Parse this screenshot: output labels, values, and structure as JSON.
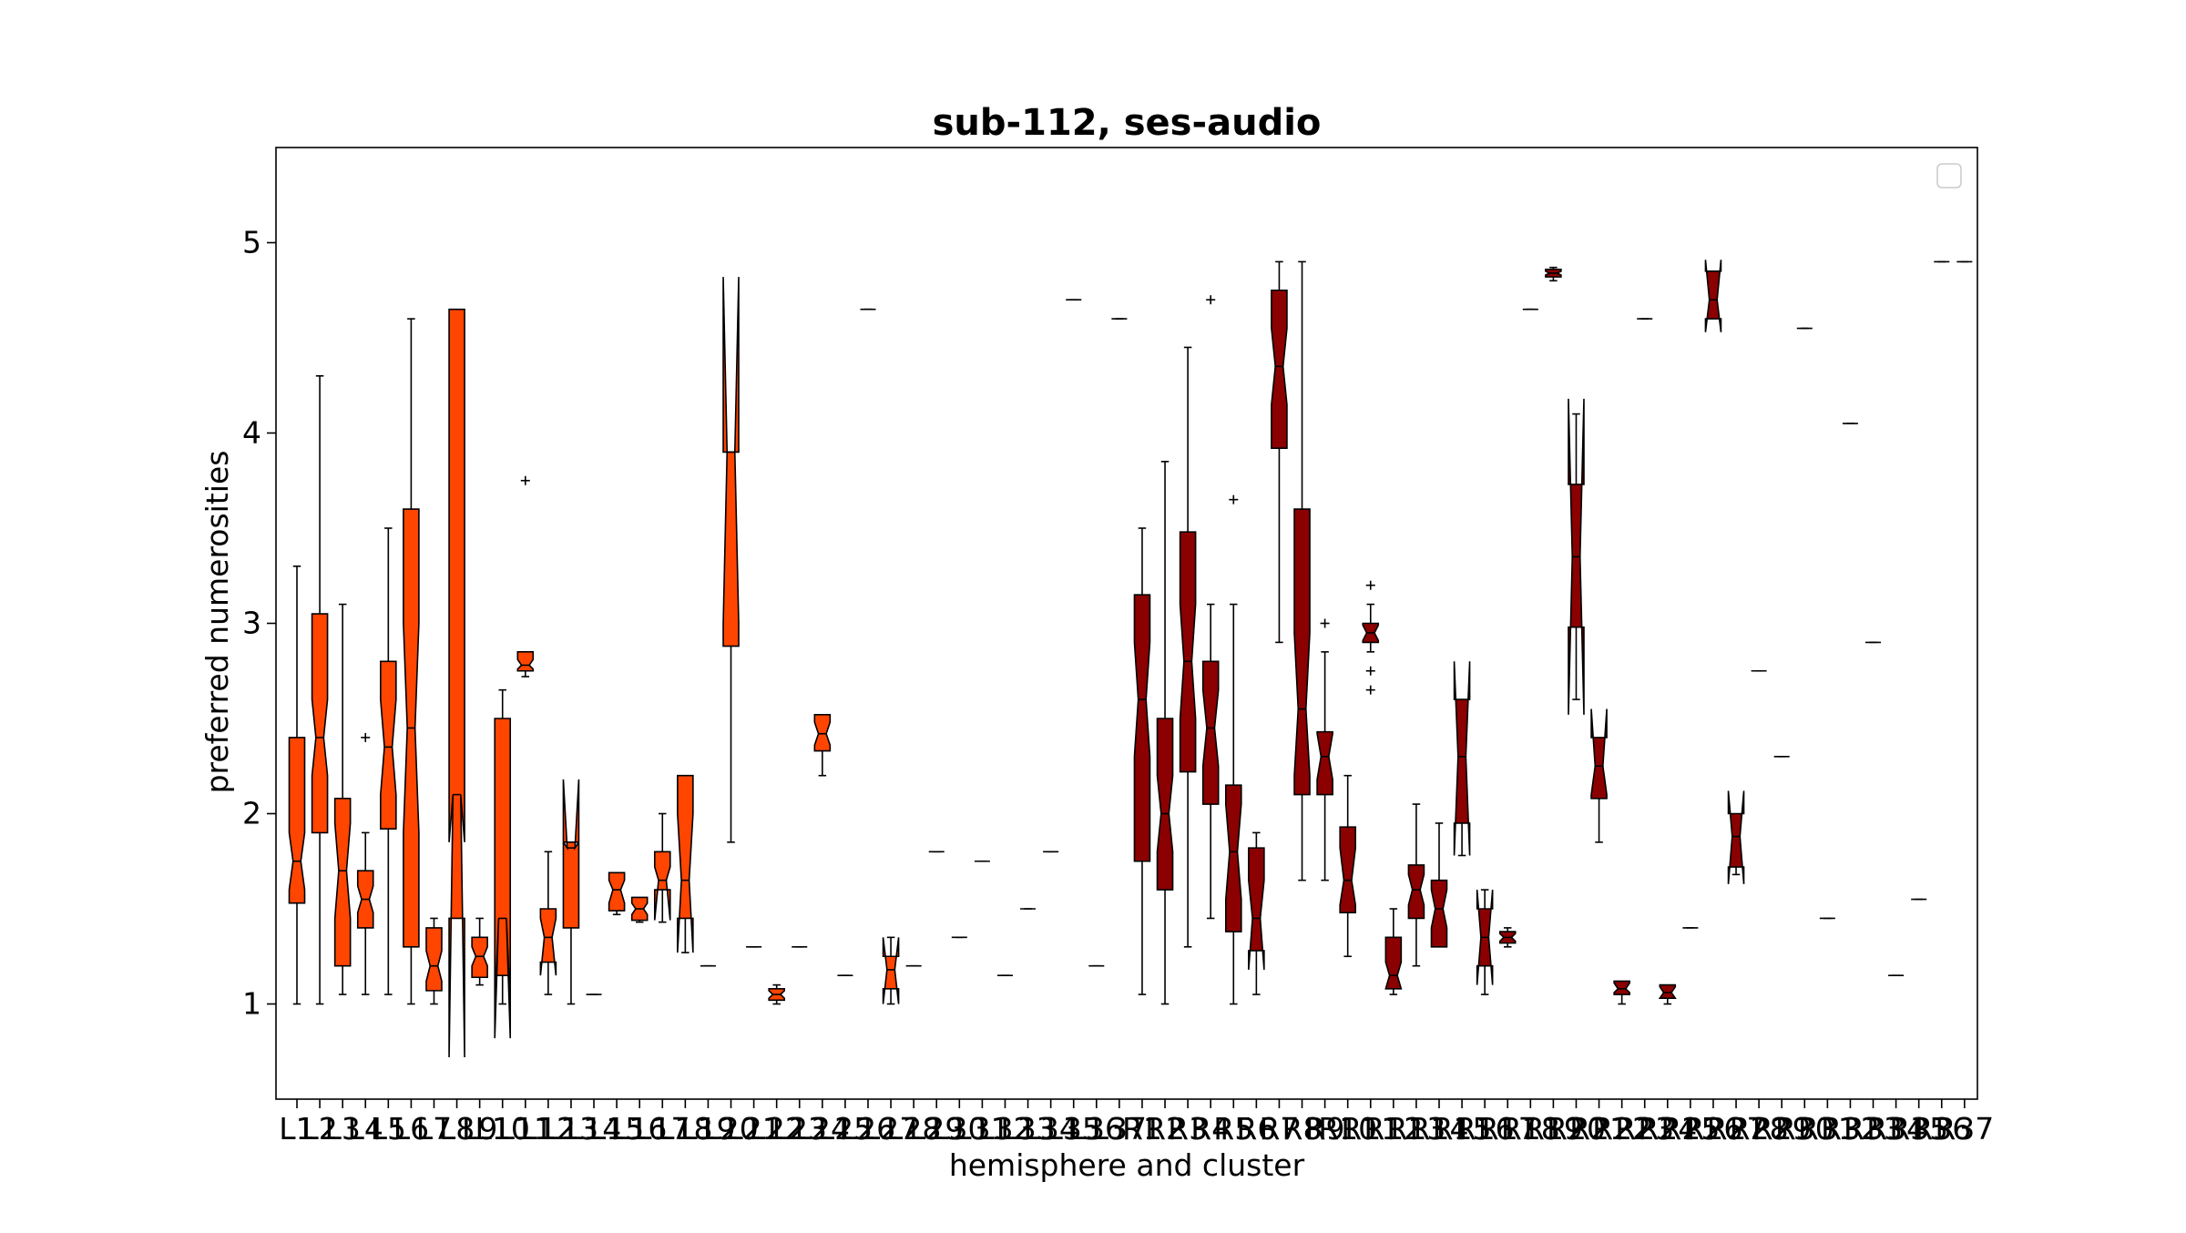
{
  "chart_data": {
    "type": "box",
    "title": "sub-112, ses-audio",
    "xlabel": "hemisphere and cluster",
    "ylabel": "preferred numerosities",
    "ylim": [
      0.5,
      5.5
    ],
    "yticks": [
      1,
      2,
      3,
      4,
      5
    ],
    "legend": "top-right (empty)",
    "grid": false,
    "colors": {
      "left": "#ff4500",
      "right": "#8b0000"
    },
    "categories": [
      "L1",
      "L2",
      "L3",
      "L4",
      "L5",
      "L6",
      "L7",
      "L8",
      "L9",
      "L10",
      "L11",
      "L12",
      "L13",
      "L14",
      "L15",
      "L16",
      "L17",
      "L18",
      "L19",
      "L20",
      "L21",
      "L22",
      "L23",
      "L24",
      "L25",
      "L26",
      "L27",
      "L28",
      "L29",
      "L30",
      "L31",
      "L32",
      "L33",
      "L34",
      "L35",
      "L36",
      "L37",
      "R1",
      "R2",
      "R3",
      "R4",
      "R5",
      "R6",
      "R7",
      "R8",
      "R9",
      "R10",
      "R11",
      "R12",
      "R13",
      "R14",
      "R15",
      "R16",
      "R17",
      "R18",
      "R19",
      "R20",
      "R21",
      "R22",
      "R23",
      "R24",
      "R25",
      "R26",
      "R27",
      "R28",
      "R29",
      "R30",
      "R31",
      "R32",
      "R33",
      "R34",
      "R35",
      "R36",
      "R37"
    ],
    "boxes": [
      {
        "label": "L1",
        "hemi": "L",
        "whislo": 1.0,
        "q1": 1.53,
        "med": 1.75,
        "q3": 2.4,
        "whishi": 3.3,
        "notchlo": 1.6,
        "notchhi": 1.9,
        "fliers": []
      },
      {
        "label": "L2",
        "hemi": "L",
        "whislo": 1.0,
        "q1": 1.9,
        "med": 2.4,
        "q3": 3.05,
        "whishi": 4.3,
        "notchlo": 2.2,
        "notchhi": 2.6,
        "fliers": []
      },
      {
        "label": "L3",
        "hemi": "L",
        "whislo": 1.05,
        "q1": 1.2,
        "med": 1.7,
        "q3": 2.08,
        "whishi": 3.1,
        "notchlo": 1.45,
        "notchhi": 1.95,
        "fliers": []
      },
      {
        "label": "L4",
        "hemi": "L",
        "whislo": 1.05,
        "q1": 1.4,
        "med": 1.55,
        "q3": 1.7,
        "whishi": 1.9,
        "notchlo": 1.48,
        "notchhi": 1.62,
        "fliers": [
          2.4
        ]
      },
      {
        "label": "L5",
        "hemi": "L",
        "whislo": 1.05,
        "q1": 1.92,
        "med": 2.35,
        "q3": 2.8,
        "whishi": 3.5,
        "notchlo": 2.1,
        "notchhi": 2.6,
        "fliers": []
      },
      {
        "label": "L6",
        "hemi": "L",
        "whislo": 1.0,
        "q1": 1.3,
        "med": 2.45,
        "q3": 3.6,
        "whishi": 4.6,
        "notchlo": 1.9,
        "notchhi": 3.0,
        "fliers": []
      },
      {
        "label": "L7",
        "hemi": "L",
        "whislo": 1.0,
        "q1": 1.07,
        "med": 1.2,
        "q3": 1.4,
        "whishi": 1.45,
        "notchlo": 1.12,
        "notchhi": 1.28,
        "fliers": []
      },
      {
        "label": "L8",
        "hemi": "L",
        "whislo": 1.45,
        "q1": 1.45,
        "med": 2.1,
        "q3": 4.65,
        "whishi": 4.65,
        "notchlo": 0.72,
        "notchhi": 1.85,
        "fliers": []
      },
      {
        "label": "L9",
        "hemi": "L",
        "whislo": 1.1,
        "q1": 1.14,
        "med": 1.25,
        "q3": 1.35,
        "whishi": 1.45,
        "notchlo": 1.2,
        "notchhi": 1.3,
        "fliers": []
      },
      {
        "label": "L10",
        "hemi": "L",
        "whislo": 1.0,
        "q1": 1.15,
        "med": 1.45,
        "q3": 2.5,
        "whishi": 2.65,
        "notchlo": 0.82,
        "notchhi": 1.0,
        "fliers": []
      },
      {
        "label": "L11",
        "hemi": "L",
        "whislo": 2.72,
        "q1": 2.75,
        "med": 2.78,
        "q3": 2.85,
        "whishi": 2.85,
        "notchlo": 2.76,
        "notchhi": 2.81,
        "fliers": [
          3.75
        ]
      },
      {
        "label": "L12",
        "hemi": "L",
        "whislo": 1.05,
        "q1": 1.22,
        "med": 1.35,
        "q3": 1.5,
        "whishi": 1.8,
        "notchlo": 1.15,
        "notchhi": 1.45,
        "fliers": []
      },
      {
        "label": "L13",
        "hemi": "L",
        "whislo": 1.0,
        "q1": 1.4,
        "med": 1.82,
        "q3": 1.85,
        "whishi": 1.85,
        "notchlo": 1.85,
        "notchhi": 2.18,
        "fliers": []
      },
      {
        "label": "L14",
        "hemi": "L",
        "whislo": 1.05,
        "q1": 1.05,
        "med": 1.05,
        "q3": 1.05,
        "whishi": 1.05,
        "notchlo": 1.05,
        "notchhi": 1.05,
        "fliers": []
      },
      {
        "label": "L15",
        "hemi": "L",
        "whislo": 1.47,
        "q1": 1.49,
        "med": 1.6,
        "q3": 1.69,
        "whishi": 1.69,
        "notchlo": 1.53,
        "notchhi": 1.65,
        "fliers": []
      },
      {
        "label": "L16",
        "hemi": "L",
        "whislo": 1.43,
        "q1": 1.44,
        "med": 1.5,
        "q3": 1.56,
        "whishi": 1.56,
        "notchlo": 1.47,
        "notchhi": 1.53,
        "fliers": []
      },
      {
        "label": "L17",
        "hemi": "L",
        "whislo": 1.43,
        "q1": 1.6,
        "med": 1.65,
        "q3": 1.8,
        "whishi": 2.0,
        "notchlo": 1.44,
        "notchhi": 1.72,
        "fliers": []
      },
      {
        "label": "L18",
        "hemi": "L",
        "whislo": 1.27,
        "q1": 1.45,
        "med": 1.65,
        "q3": 2.2,
        "whishi": 2.2,
        "notchlo": 1.27,
        "notchhi": 2.0,
        "fliers": []
      },
      {
        "label": "L19",
        "hemi": "L",
        "whislo": 1.2,
        "q1": 1.2,
        "med": 1.2,
        "q3": 1.2,
        "whishi": 1.2,
        "notchlo": 1.2,
        "notchhi": 1.2,
        "fliers": []
      },
      {
        "label": "L20",
        "hemi": "L",
        "whislo": 1.85,
        "q1": 2.88,
        "med": 3.9,
        "q3": 3.9,
        "whishi": 3.9,
        "notchlo": 3.0,
        "notchhi": 4.82,
        "fliers": []
      },
      {
        "label": "L21",
        "hemi": "L",
        "whislo": 1.3,
        "q1": 1.3,
        "med": 1.3,
        "q3": 1.3,
        "whishi": 1.3,
        "notchlo": 1.3,
        "notchhi": 1.3,
        "fliers": []
      },
      {
        "label": "L22",
        "hemi": "L",
        "whislo": 1.0,
        "q1": 1.02,
        "med": 1.05,
        "q3": 1.08,
        "whishi": 1.1,
        "notchlo": 1.03,
        "notchhi": 1.07,
        "fliers": []
      },
      {
        "label": "L23",
        "hemi": "L",
        "whislo": 1.3,
        "q1": 1.3,
        "med": 1.3,
        "q3": 1.3,
        "whishi": 1.3,
        "notchlo": 1.3,
        "notchhi": 1.3,
        "fliers": []
      },
      {
        "label": "L24",
        "hemi": "L",
        "whislo": 2.2,
        "q1": 2.33,
        "med": 2.42,
        "q3": 2.52,
        "whishi": 2.52,
        "notchlo": 2.36,
        "notchhi": 2.48,
        "fliers": []
      },
      {
        "label": "L25",
        "hemi": "L",
        "whislo": 1.15,
        "q1": 1.15,
        "med": 1.15,
        "q3": 1.15,
        "whishi": 1.15,
        "notchlo": 1.15,
        "notchhi": 1.15,
        "fliers": []
      },
      {
        "label": "L26",
        "hemi": "L",
        "whislo": 4.65,
        "q1": 4.65,
        "med": 4.65,
        "q3": 4.65,
        "whishi": 4.65,
        "notchlo": 4.65,
        "notchhi": 4.65,
        "fliers": []
      },
      {
        "label": "L27",
        "hemi": "L",
        "whislo": 1.0,
        "q1": 1.08,
        "med": 1.18,
        "q3": 1.25,
        "whishi": 1.35,
        "notchlo": 1.0,
        "notchhi": 1.35,
        "fliers": []
      },
      {
        "label": "L28",
        "hemi": "L",
        "whislo": 1.2,
        "q1": 1.2,
        "med": 1.2,
        "q3": 1.2,
        "whishi": 1.2,
        "notchlo": 1.2,
        "notchhi": 1.2,
        "fliers": []
      },
      {
        "label": "L29",
        "hemi": "L",
        "whislo": 1.8,
        "q1": 1.8,
        "med": 1.8,
        "q3": 1.8,
        "whishi": 1.8,
        "notchlo": 1.8,
        "notchhi": 1.8,
        "fliers": []
      },
      {
        "label": "L30",
        "hemi": "L",
        "whislo": 1.35,
        "q1": 1.35,
        "med": 1.35,
        "q3": 1.35,
        "whishi": 1.35,
        "notchlo": 1.35,
        "notchhi": 1.35,
        "fliers": []
      },
      {
        "label": "L31",
        "hemi": "L",
        "whislo": 1.75,
        "q1": 1.75,
        "med": 1.75,
        "q3": 1.75,
        "whishi": 1.75,
        "notchlo": 1.75,
        "notchhi": 1.75,
        "fliers": []
      },
      {
        "label": "L32",
        "hemi": "L",
        "whislo": 1.15,
        "q1": 1.15,
        "med": 1.15,
        "q3": 1.15,
        "whishi": 1.15,
        "notchlo": 1.15,
        "notchhi": 1.15,
        "fliers": []
      },
      {
        "label": "L33",
        "hemi": "L",
        "whislo": 1.5,
        "q1": 1.5,
        "med": 1.5,
        "q3": 1.5,
        "whishi": 1.5,
        "notchlo": 1.5,
        "notchhi": 1.5,
        "fliers": []
      },
      {
        "label": "L34",
        "hemi": "L",
        "whislo": 1.8,
        "q1": 1.8,
        "med": 1.8,
        "q3": 1.8,
        "whishi": 1.8,
        "notchlo": 1.8,
        "notchhi": 1.8,
        "fliers": []
      },
      {
        "label": "L35",
        "hemi": "L",
        "whislo": 4.7,
        "q1": 4.7,
        "med": 4.7,
        "q3": 4.7,
        "whishi": 4.7,
        "notchlo": 4.7,
        "notchhi": 4.7,
        "fliers": []
      },
      {
        "label": "L36",
        "hemi": "L",
        "whislo": 1.2,
        "q1": 1.2,
        "med": 1.2,
        "q3": 1.2,
        "whishi": 1.2,
        "notchlo": 1.2,
        "notchhi": 1.2,
        "fliers": []
      },
      {
        "label": "L37",
        "hemi": "L",
        "whislo": 4.6,
        "q1": 4.6,
        "med": 4.6,
        "q3": 4.6,
        "whishi": 4.6,
        "notchlo": 4.6,
        "notchhi": 4.6,
        "fliers": []
      },
      {
        "label": "R1",
        "hemi": "R",
        "whislo": 1.05,
        "q1": 1.75,
        "med": 2.6,
        "q3": 3.15,
        "whishi": 3.5,
        "notchlo": 2.3,
        "notchhi": 2.9,
        "fliers": []
      },
      {
        "label": "R2",
        "hemi": "R",
        "whislo": 1.0,
        "q1": 1.6,
        "med": 2.0,
        "q3": 2.5,
        "whishi": 3.85,
        "notchlo": 1.8,
        "notchhi": 2.2,
        "fliers": []
      },
      {
        "label": "R3",
        "hemi": "R",
        "whislo": 1.3,
        "q1": 2.22,
        "med": 2.8,
        "q3": 3.48,
        "whishi": 4.45,
        "notchlo": 2.5,
        "notchhi": 3.1,
        "fliers": []
      },
      {
        "label": "R4",
        "hemi": "R",
        "whislo": 1.45,
        "q1": 2.05,
        "med": 2.45,
        "q3": 2.8,
        "whishi": 3.1,
        "notchlo": 2.25,
        "notchhi": 2.65,
        "fliers": [
          4.7
        ]
      },
      {
        "label": "R5",
        "hemi": "R",
        "whislo": 1.0,
        "q1": 1.38,
        "med": 1.8,
        "q3": 2.15,
        "whishi": 3.1,
        "notchlo": 1.55,
        "notchhi": 2.05,
        "fliers": [
          3.65
        ]
      },
      {
        "label": "R6",
        "hemi": "R",
        "whislo": 1.05,
        "q1": 1.28,
        "med": 1.45,
        "q3": 1.82,
        "whishi": 1.9,
        "notchlo": 1.18,
        "notchhi": 1.65,
        "fliers": []
      },
      {
        "label": "R7",
        "hemi": "R",
        "whislo": 2.9,
        "q1": 3.92,
        "med": 4.35,
        "q3": 4.75,
        "whishi": 4.9,
        "notchlo": 4.15,
        "notchhi": 4.55,
        "fliers": []
      },
      {
        "label": "R8",
        "hemi": "R",
        "whislo": 1.65,
        "q1": 2.1,
        "med": 2.55,
        "q3": 3.6,
        "whishi": 4.9,
        "notchlo": 2.2,
        "notchhi": 2.95,
        "fliers": []
      },
      {
        "label": "R9",
        "hemi": "R",
        "whislo": 1.65,
        "q1": 2.1,
        "med": 2.3,
        "q3": 2.43,
        "whishi": 2.85,
        "notchlo": 2.18,
        "notchhi": 2.42,
        "fliers": [
          3.0
        ]
      },
      {
        "label": "R10",
        "hemi": "R",
        "whislo": 1.25,
        "q1": 1.48,
        "med": 1.65,
        "q3": 1.93,
        "whishi": 2.2,
        "notchlo": 1.52,
        "notchhi": 1.82,
        "fliers": []
      },
      {
        "label": "R11",
        "hemi": "R",
        "whislo": 2.85,
        "q1": 2.9,
        "med": 2.95,
        "q3": 3.0,
        "whishi": 3.1,
        "notchlo": 2.91,
        "notchhi": 2.99,
        "fliers": [
          2.75,
          2.65,
          3.2
        ]
      },
      {
        "label": "R12",
        "hemi": "R",
        "whislo": 1.05,
        "q1": 1.08,
        "med": 1.15,
        "q3": 1.35,
        "whishi": 1.5,
        "notchlo": 1.08,
        "notchhi": 1.22,
        "fliers": []
      },
      {
        "label": "R13",
        "hemi": "R",
        "whislo": 1.2,
        "q1": 1.45,
        "med": 1.6,
        "q3": 1.73,
        "whishi": 2.05,
        "notchlo": 1.52,
        "notchhi": 1.68,
        "fliers": []
      },
      {
        "label": "R14",
        "hemi": "R",
        "whislo": 1.3,
        "q1": 1.3,
        "med": 1.5,
        "q3": 1.65,
        "whishi": 1.95,
        "notchlo": 1.4,
        "notchhi": 1.6,
        "fliers": []
      },
      {
        "label": "R15",
        "hemi": "R",
        "whislo": 1.78,
        "q1": 1.95,
        "med": 2.3,
        "q3": 2.6,
        "whishi": 2.6,
        "notchlo": 1.78,
        "notchhi": 2.8,
        "fliers": []
      },
      {
        "label": "R16",
        "hemi": "R",
        "whislo": 1.05,
        "q1": 1.2,
        "med": 1.35,
        "q3": 1.5,
        "whishi": 1.6,
        "notchlo": 1.1,
        "notchhi": 1.6,
        "fliers": []
      },
      {
        "label": "R17",
        "hemi": "R",
        "whislo": 1.3,
        "q1": 1.32,
        "med": 1.35,
        "q3": 1.38,
        "whishi": 1.4,
        "notchlo": 1.33,
        "notchhi": 1.37,
        "fliers": []
      },
      {
        "label": "R18",
        "hemi": "R",
        "whislo": 4.65,
        "q1": 4.65,
        "med": 4.65,
        "q3": 4.65,
        "whishi": 4.65,
        "notchlo": 4.65,
        "notchhi": 4.65,
        "fliers": []
      },
      {
        "label": "R19",
        "hemi": "R",
        "whislo": 4.8,
        "q1": 4.82,
        "med": 4.84,
        "q3": 4.86,
        "whishi": 4.87,
        "notchlo": 4.83,
        "notchhi": 4.85,
        "fliers": []
      },
      {
        "label": "R20",
        "hemi": "R",
        "whislo": 2.6,
        "q1": 2.98,
        "med": 3.35,
        "q3": 3.73,
        "whishi": 4.1,
        "notchlo": 2.52,
        "notchhi": 4.18,
        "fliers": []
      },
      {
        "label": "R21",
        "hemi": "R",
        "whislo": 1.85,
        "q1": 2.08,
        "med": 2.25,
        "q3": 2.4,
        "whishi": 2.4,
        "notchlo": 2.1,
        "notchhi": 2.55,
        "fliers": []
      },
      {
        "label": "R22",
        "hemi": "R",
        "whislo": 1.0,
        "q1": 1.05,
        "med": 1.08,
        "q3": 1.12,
        "whishi": 1.12,
        "notchlo": 1.06,
        "notchhi": 1.11,
        "fliers": []
      },
      {
        "label": "R23",
        "hemi": "R",
        "whislo": 4.6,
        "q1": 4.6,
        "med": 4.6,
        "q3": 4.6,
        "whishi": 4.6,
        "notchlo": 4.6,
        "notchhi": 4.6,
        "fliers": []
      },
      {
        "label": "R24",
        "hemi": "R",
        "whislo": 1.0,
        "q1": 1.03,
        "med": 1.06,
        "q3": 1.1,
        "whishi": 1.1,
        "notchlo": 1.03,
        "notchhi": 1.09,
        "fliers": []
      },
      {
        "label": "R25",
        "hemi": "R",
        "whislo": 1.4,
        "q1": 1.4,
        "med": 1.4,
        "q3": 1.4,
        "whishi": 1.4,
        "notchlo": 1.4,
        "notchhi": 1.4,
        "fliers": []
      },
      {
        "label": "R26",
        "hemi": "R",
        "whislo": 4.6,
        "q1": 4.6,
        "med": 4.7,
        "q3": 4.85,
        "whishi": 4.85,
        "notchlo": 4.53,
        "notchhi": 4.91,
        "fliers": []
      },
      {
        "label": "R27",
        "hemi": "R",
        "whislo": 1.68,
        "q1": 1.72,
        "med": 1.88,
        "q3": 2.0,
        "whishi": 2.0,
        "notchlo": 1.63,
        "notchhi": 2.12,
        "fliers": []
      },
      {
        "label": "R28",
        "hemi": "R",
        "whislo": 2.75,
        "q1": 2.75,
        "med": 2.75,
        "q3": 2.75,
        "whishi": 2.75,
        "notchlo": 2.75,
        "notchhi": 2.75,
        "fliers": []
      },
      {
        "label": "R29",
        "hemi": "R",
        "whislo": 2.3,
        "q1": 2.3,
        "med": 2.3,
        "q3": 2.3,
        "whishi": 2.3,
        "notchlo": 2.3,
        "notchhi": 2.3,
        "fliers": []
      },
      {
        "label": "R30",
        "hemi": "R",
        "whislo": 4.55,
        "q1": 4.55,
        "med": 4.55,
        "q3": 4.55,
        "whishi": 4.55,
        "notchlo": 4.55,
        "notchhi": 4.55,
        "fliers": []
      },
      {
        "label": "R31",
        "hemi": "R",
        "whislo": 1.45,
        "q1": 1.45,
        "med": 1.45,
        "q3": 1.45,
        "whishi": 1.45,
        "notchlo": 1.45,
        "notchhi": 1.45,
        "fliers": []
      },
      {
        "label": "R32",
        "hemi": "R",
        "whislo": 4.05,
        "q1": 4.05,
        "med": 4.05,
        "q3": 4.05,
        "whishi": 4.05,
        "notchlo": 4.05,
        "notchhi": 4.05,
        "fliers": []
      },
      {
        "label": "R33",
        "hemi": "R",
        "whislo": 2.9,
        "q1": 2.9,
        "med": 2.9,
        "q3": 2.9,
        "whishi": 2.9,
        "notchlo": 2.9,
        "notchhi": 2.9,
        "fliers": []
      },
      {
        "label": "R34",
        "hemi": "R",
        "whislo": 1.15,
        "q1": 1.15,
        "med": 1.15,
        "q3": 1.15,
        "whishi": 1.15,
        "notchlo": 1.15,
        "notchhi": 1.15,
        "fliers": []
      },
      {
        "label": "R35",
        "hemi": "R",
        "whislo": 1.55,
        "q1": 1.55,
        "med": 1.55,
        "q3": 1.55,
        "whishi": 1.55,
        "notchlo": 1.55,
        "notchhi": 1.55,
        "fliers": []
      },
      {
        "label": "R36",
        "hemi": "R",
        "whislo": 4.9,
        "q1": 4.9,
        "med": 4.9,
        "q3": 4.9,
        "whishi": 4.9,
        "notchlo": 4.9,
        "notchhi": 4.9,
        "fliers": []
      },
      {
        "label": "R37",
        "hemi": "R",
        "whislo": 4.9,
        "q1": 4.9,
        "med": 4.9,
        "q3": 4.9,
        "whishi": 4.9,
        "notchlo": 4.9,
        "notchhi": 4.9,
        "fliers": []
      }
    ]
  }
}
